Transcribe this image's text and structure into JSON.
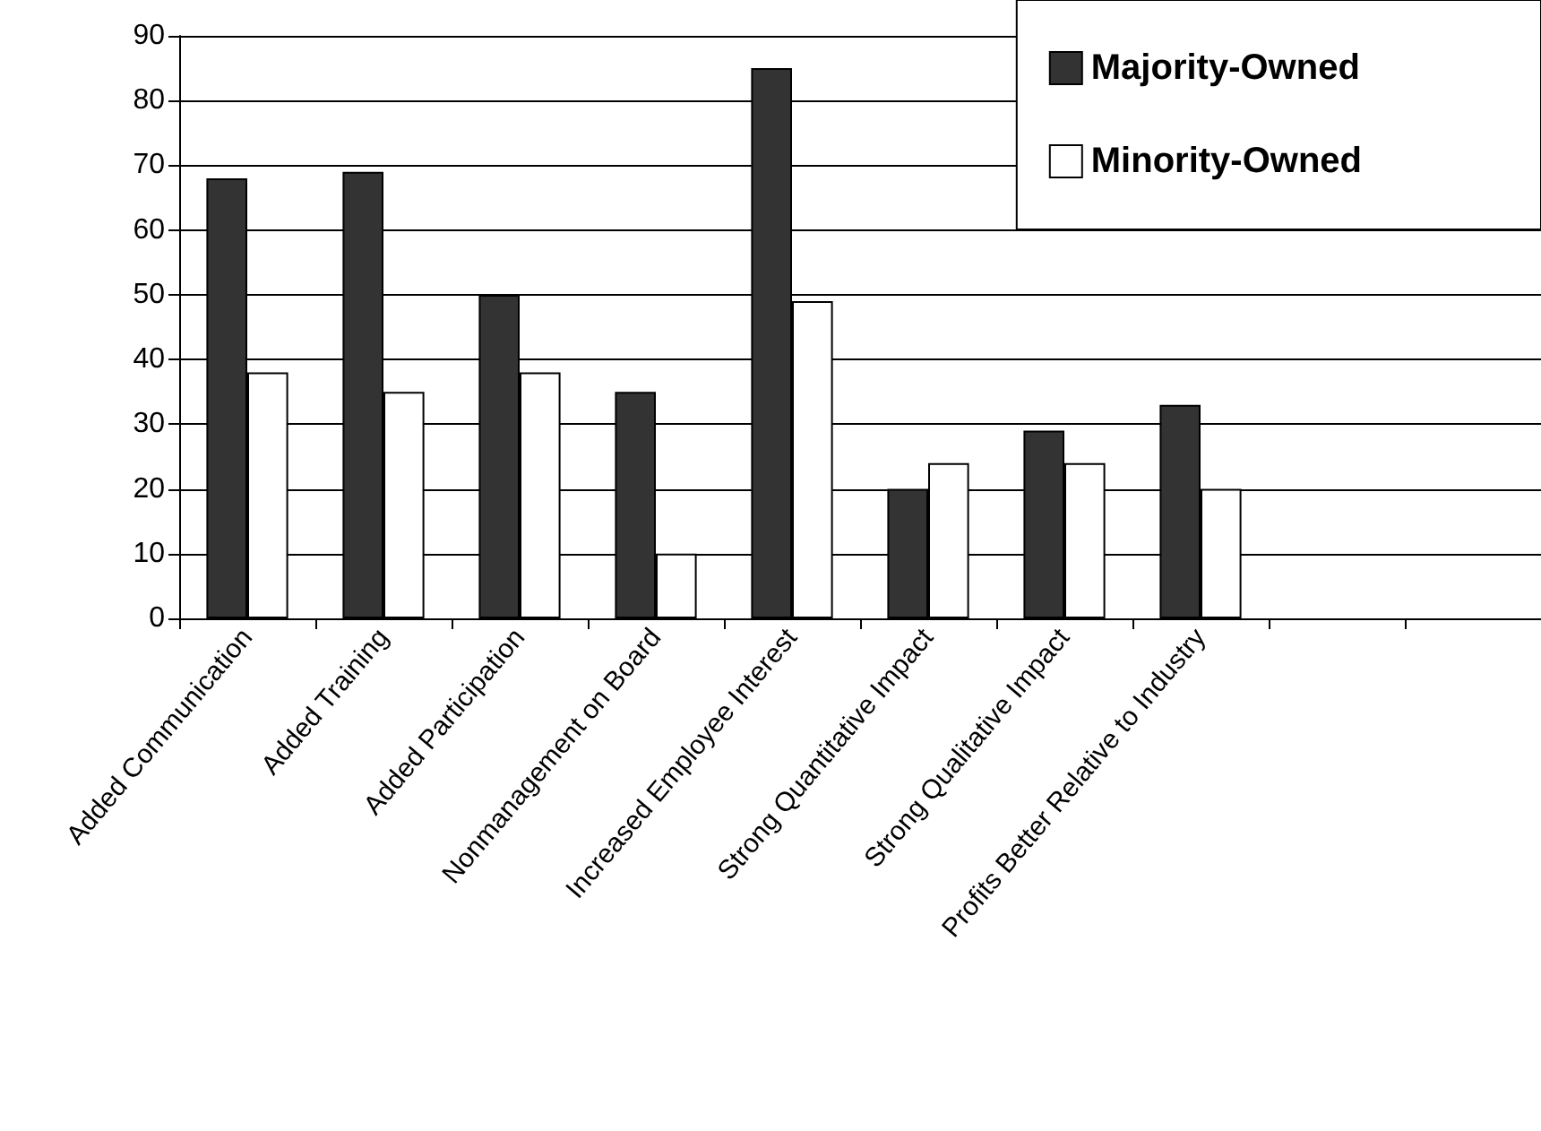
{
  "chart_data": {
    "type": "bar",
    "categories": [
      "Added Communication",
      "Added Training",
      "Added Participation",
      "Nonmanagement on Board",
      "Increased Employee Interest",
      "Strong Quantitative Impact",
      "Strong Qualitative Impact",
      "Profits Better Relative to Industry",
      null,
      null
    ],
    "series": [
      {
        "name": "Majority-Owned",
        "color": "#333333",
        "values": [
          68,
          69,
          50,
          35,
          85,
          20,
          29,
          33,
          null,
          null
        ]
      },
      {
        "name": "Minority-Owned",
        "color": "#ffffff",
        "values": [
          38,
          35,
          38,
          10,
          49,
          24,
          24,
          20,
          null,
          null
        ]
      }
    ],
    "ylim": [
      0,
      90
    ],
    "yticks": [
      0,
      10,
      20,
      30,
      40,
      50,
      60,
      70,
      80,
      90
    ],
    "grid": "y",
    "legend": "top right"
  }
}
